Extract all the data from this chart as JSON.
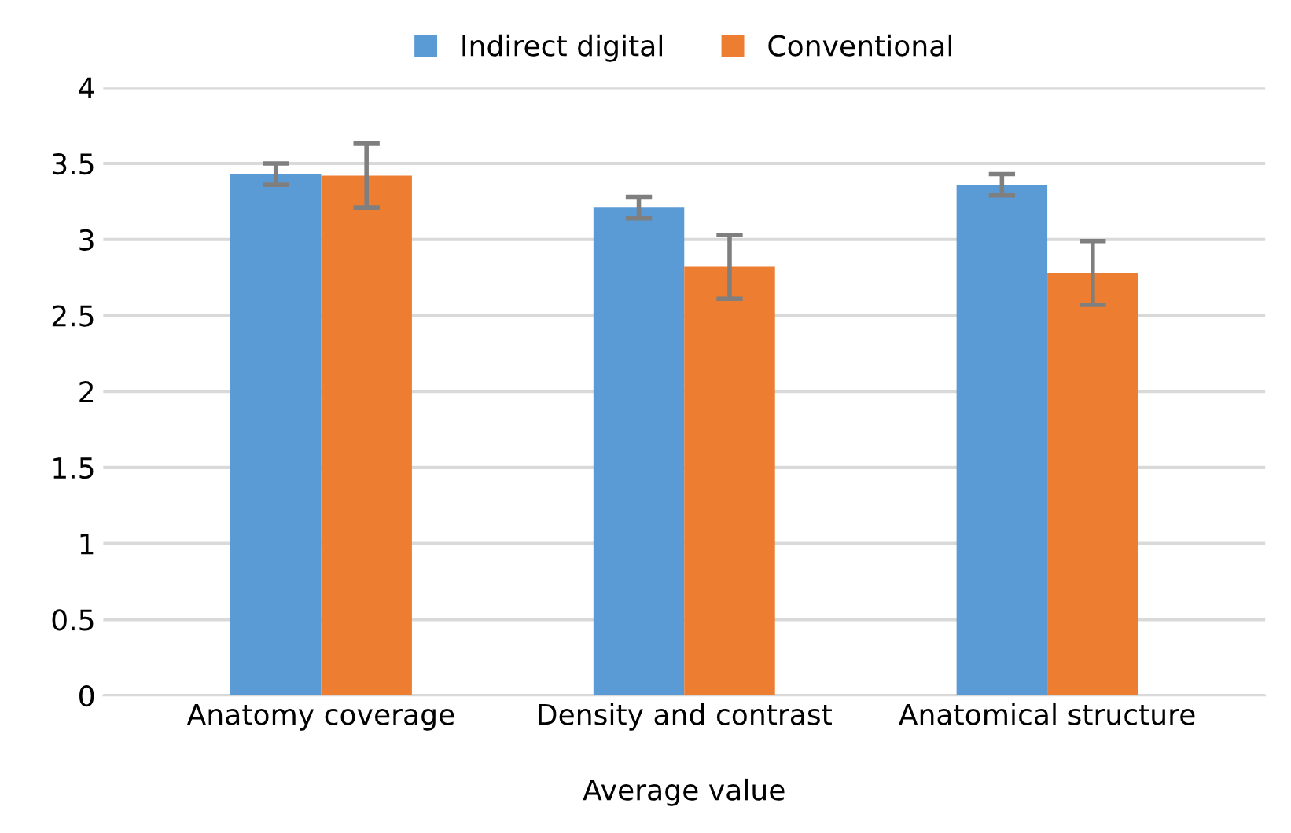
{
  "chart_data": {
    "type": "bar",
    "xlabel": "Average value",
    "categories": [
      "Anatomy coverage",
      "Density and contrast",
      "Anatomical structure"
    ],
    "series": [
      {
        "name": "Indirect digital",
        "color": "#5b9bd5",
        "values": [
          3.43,
          3.21,
          3.36
        ],
        "errors": [
          0.07,
          0.07,
          0.07
        ]
      },
      {
        "name": "Conventional",
        "color": "#ed7d31",
        "values": [
          3.42,
          2.82,
          2.78
        ],
        "errors": [
          0.21,
          0.21,
          0.21
        ]
      }
    ],
    "ylim": [
      0,
      4
    ],
    "yticks": [
      0,
      0.5,
      1,
      1.5,
      2,
      2.5,
      3,
      3.5,
      4
    ],
    "grid": "y",
    "legend": "top"
  }
}
